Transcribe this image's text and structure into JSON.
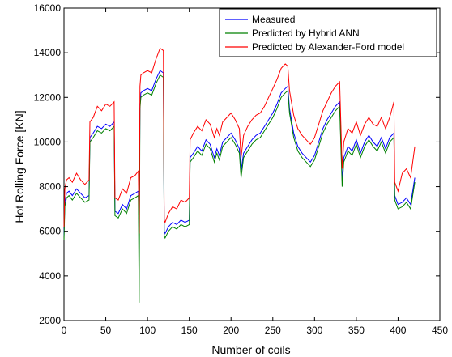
{
  "chart_data": {
    "type": "line",
    "title": "",
    "xlabel": "Number of coils",
    "ylabel": "Hot Rolling Force [KN]",
    "xlim": [
      0,
      450
    ],
    "ylim": [
      2000,
      16000
    ],
    "xticks": [
      0,
      50,
      100,
      150,
      200,
      250,
      300,
      350,
      400,
      450
    ],
    "yticks": [
      2000,
      4000,
      6000,
      8000,
      10000,
      12000,
      14000,
      16000
    ],
    "grid": false,
    "legend_position": "top-right",
    "series": [
      {
        "name": "Measured",
        "color": "#0000ff",
        "x": [
          0,
          1,
          3,
          6,
          10,
          15,
          20,
          25,
          30,
          31,
          35,
          40,
          45,
          50,
          55,
          60,
          61,
          65,
          70,
          75,
          80,
          85,
          89,
          90,
          91,
          92,
          95,
          100,
          105,
          110,
          115,
          119,
          120,
          121,
          125,
          130,
          135,
          140,
          145,
          150,
          151,
          155,
          160,
          165,
          170,
          175,
          180,
          183,
          186,
          190,
          195,
          200,
          205,
          210,
          212,
          215,
          220,
          225,
          230,
          235,
          240,
          245,
          250,
          255,
          260,
          265,
          268,
          270,
          275,
          280,
          285,
          290,
          295,
          300,
          305,
          310,
          315,
          320,
          325,
          330,
          333,
          335,
          340,
          345,
          350,
          355,
          360,
          365,
          370,
          375,
          380,
          385,
          390,
          395,
          396,
          400,
          405,
          410,
          415,
          420
        ],
        "y": [
          5800,
          7300,
          7700,
          7800,
          7600,
          7900,
          7700,
          7500,
          7600,
          10200,
          10400,
          10700,
          10600,
          10800,
          10700,
          10900,
          6900,
          6800,
          7200,
          7000,
          7600,
          7700,
          7800,
          5500,
          11700,
          12200,
          12300,
          12400,
          12300,
          12800,
          13200,
          13100,
          6000,
          5900,
          6200,
          6400,
          6300,
          6500,
          6400,
          6500,
          9300,
          9500,
          9800,
          9600,
          10100,
          9900,
          9300,
          9700,
          9400,
          10000,
          10200,
          10400,
          10100,
          9700,
          8700,
          9500,
          9800,
          10100,
          10300,
          10400,
          10700,
          11000,
          11300,
          11700,
          12200,
          12400,
          12500,
          11500,
          10400,
          9800,
          9500,
          9300,
          9100,
          9400,
          10000,
          10600,
          11000,
          11300,
          11600,
          11800,
          8300,
          9300,
          9800,
          9600,
          10100,
          9500,
          10000,
          10300,
          10000,
          9800,
          10200,
          9700,
          10200,
          10400,
          7600,
          7200,
          7300,
          7500,
          7200,
          8400
        ]
      },
      {
        "name": "Predicted by Hybrid ANN",
        "color": "#008000",
        "x": [
          0,
          1,
          3,
          6,
          10,
          15,
          20,
          25,
          30,
          31,
          35,
          40,
          45,
          50,
          55,
          60,
          61,
          65,
          70,
          75,
          80,
          85,
          89,
          90,
          91,
          92,
          95,
          100,
          105,
          110,
          115,
          119,
          120,
          121,
          125,
          130,
          135,
          140,
          145,
          150,
          151,
          155,
          160,
          165,
          170,
          175,
          180,
          183,
          186,
          190,
          195,
          200,
          205,
          210,
          212,
          215,
          220,
          225,
          230,
          235,
          240,
          245,
          250,
          255,
          260,
          265,
          268,
          270,
          275,
          280,
          285,
          290,
          295,
          300,
          305,
          310,
          315,
          320,
          325,
          330,
          333,
          335,
          340,
          345,
          350,
          355,
          360,
          365,
          370,
          375,
          380,
          385,
          390,
          395,
          396,
          400,
          405,
          410,
          415,
          420
        ],
        "y": [
          5600,
          7100,
          7500,
          7600,
          7400,
          7700,
          7500,
          7300,
          7400,
          10000,
          10200,
          10500,
          10400,
          10600,
          10500,
          10700,
          6700,
          6600,
          7000,
          6800,
          7400,
          7500,
          7600,
          2800,
          11500,
          12000,
          12100,
          12200,
          12100,
          12600,
          13000,
          12900,
          5800,
          5700,
          6000,
          6200,
          6100,
          6300,
          6200,
          6300,
          9100,
          9300,
          9600,
          9400,
          9900,
          9700,
          9100,
          9500,
          9200,
          9800,
          10000,
          10200,
          9900,
          9500,
          8400,
          9300,
          9600,
          9900,
          10100,
          10200,
          10500,
          10800,
          11100,
          11500,
          12000,
          12200,
          12300,
          11300,
          10200,
          9600,
          9300,
          9100,
          8900,
          9200,
          9800,
          10400,
          10800,
          11100,
          11400,
          11600,
          8000,
          9100,
          9600,
          9400,
          9900,
          9300,
          9800,
          10100,
          9800,
          9600,
          10000,
          9500,
          10000,
          10200,
          7400,
          7000,
          7100,
          7300,
          7000,
          8200
        ]
      },
      {
        "name": "Predicted by Alexander-Ford model",
        "color": "#ff0000",
        "x": [
          0,
          1,
          3,
          6,
          10,
          15,
          20,
          25,
          30,
          31,
          35,
          40,
          45,
          50,
          55,
          60,
          61,
          65,
          70,
          75,
          80,
          85,
          89,
          90,
          91,
          92,
          95,
          100,
          105,
          110,
          115,
          119,
          120,
          121,
          125,
          130,
          135,
          140,
          145,
          150,
          151,
          155,
          160,
          165,
          170,
          175,
          180,
          183,
          186,
          190,
          195,
          200,
          205,
          210,
          212,
          215,
          220,
          225,
          230,
          235,
          240,
          245,
          250,
          255,
          260,
          265,
          268,
          270,
          275,
          280,
          285,
          290,
          295,
          300,
          305,
          310,
          315,
          320,
          325,
          330,
          333,
          335,
          340,
          345,
          350,
          355,
          360,
          365,
          370,
          375,
          380,
          385,
          390,
          395,
          396,
          400,
          405,
          410,
          415,
          420
        ],
        "y": [
          6200,
          7900,
          8300,
          8400,
          8200,
          8600,
          8300,
          8100,
          8300,
          10900,
          11100,
          11600,
          11400,
          11700,
          11600,
          11800,
          7500,
          7400,
          7900,
          7700,
          8400,
          8500,
          8700,
          5900,
          12500,
          13000,
          13100,
          13200,
          13100,
          13700,
          14200,
          14100,
          6500,
          6400,
          6800,
          7100,
          7000,
          7400,
          7300,
          7500,
          10100,
          10400,
          10700,
          10500,
          11000,
          10800,
          10200,
          10600,
          10300,
          10900,
          11100,
          11300,
          11000,
          10600,
          9300,
          10300,
          10700,
          11000,
          11200,
          11300,
          11600,
          12000,
          12400,
          12800,
          13300,
          13500,
          13400,
          12300,
          11200,
          10600,
          10300,
          10100,
          9900,
          10200,
          10800,
          11400,
          11800,
          12200,
          12500,
          12700,
          8800,
          10000,
          10600,
          10400,
          10900,
          10300,
          10800,
          11100,
          10800,
          10700,
          11100,
          10600,
          11100,
          11800,
          8200,
          7800,
          8600,
          8800,
          8400,
          9800
        ]
      }
    ]
  }
}
